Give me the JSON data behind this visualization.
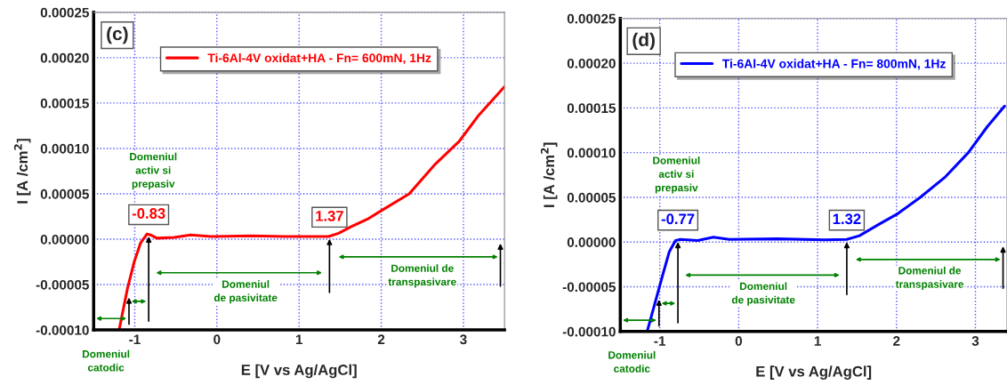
{
  "chart_data": [
    {
      "type": "line",
      "title": "(c)",
      "xlabel": "E [V vs Ag/AgCl]",
      "ylabel": "I [A /cm$^{2}$]",
      "series": [
        {
          "name": "Ti-6Al-4V oxidat+HA - Fn= 600mN, 1Hz",
          "color": "#ff0000",
          "x": [
            -1.19,
            -1.09,
            -1.01,
            -0.93,
            -0.85,
            -0.81,
            -0.73,
            -0.52,
            -0.32,
            -0.07,
            0.42,
            0.82,
            1.36,
            1.48,
            1.64,
            1.85,
            2.01,
            2.34,
            2.66,
            2.95,
            3.19,
            3.5
          ],
          "values": [
            -0.0001,
            -5.5e-05,
            -2.6e-05,
            -4.3e-06,
            5.8e-06,
            4.7e-06,
            1.1e-06,
            2e-06,
            4.7e-06,
            3e-06,
            3.6e-06,
            3e-06,
            3e-06,
            6.5e-06,
            1.4e-05,
            2.3e-05,
            3.2e-05,
            5e-05,
            8.3e-05,
            0.000108,
            0.000137,
            0.000168
          ]
        }
      ],
      "annotations": [
        {
          "text": "-0.83",
          "x": -0.83,
          "y": 5.8e-06
        },
        {
          "text": "1.37",
          "x": 1.37,
          "y": 3e-06
        },
        "Domeniul catodic",
        "Domeniul activ si prepasiv",
        "Domeniul de pasivitate",
        "Domeniul de transpasivare"
      ],
      "xlim": [
        -1.5,
        3.5
      ],
      "xticks": [
        -1,
        0,
        1,
        2,
        3
      ],
      "ylim": [
        -0.0001,
        0.00025
      ],
      "yticks": [
        {
          "value": -0.0001,
          "label": "-0.00010"
        },
        {
          "value": -5e-05,
          "label": "-0.00005"
        },
        {
          "value": 0,
          "label": "0.00000"
        },
        {
          "value": 5e-05,
          "label": "0.00005"
        },
        {
          "value": 0.0001,
          "label": "0.00010"
        },
        {
          "value": 0.00015,
          "label": "0.00015"
        },
        {
          "value": 0.0002,
          "label": "0.00020"
        },
        {
          "value": 0.00025,
          "label": "0.00025"
        }
      ],
      "grid": true,
      "legend": "top",
      "line_style": "solid",
      "marker": "none"
    },
    {
      "type": "line",
      "title": "(d)",
      "xlabel": "E [V vs Ag/AgCl]",
      "ylabel": "I [A /cm$^{2}$]",
      "series": [
        {
          "name": "Ti-6Al-4V oxidat+HA - Fn= 800mN, 1Hz",
          "color": "#0000ff",
          "x": [
            -1.16,
            -1.06,
            -0.96,
            -0.88,
            -0.8,
            -0.74,
            -0.52,
            -0.32,
            -0.12,
            0.49,
            1.09,
            1.37,
            1.53,
            1.78,
            2.02,
            2.3,
            2.62,
            2.91,
            3.15,
            3.37
          ],
          "values": [
            -0.0001,
            -6.8e-05,
            -3.6e-05,
            -1.1e-05,
            1.8e-06,
            2.9e-06,
            1.8e-06,
            5.4e-06,
            2.9e-06,
            3.6e-06,
            2.5e-06,
            2.9e-06,
            7.1e-06,
            2e-05,
            3.2e-05,
            5e-05,
            7.3e-05,
            0.0001,
            0.000129,
            0.000152
          ]
        }
      ],
      "annotations": [
        {
          "text": "-0.77",
          "x": -0.77,
          "y": 2.9e-06
        },
        {
          "text": "1.32",
          "x": 1.37,
          "y": 2.9e-06
        },
        "Domeniul catodic",
        "Domeniul activ si prepasiv",
        "Domeniul de pasivitate",
        "Domeniul de transpasivare"
      ],
      "xlim": [
        -1.5,
        3.4
      ],
      "xticks": [
        -1,
        0,
        1,
        2,
        3
      ],
      "ylim": [
        -0.0001,
        0.00025
      ],
      "yticks": [
        {
          "value": -0.0001,
          "label": "-0.00010"
        },
        {
          "value": -5e-05,
          "label": "-0.00005"
        },
        {
          "value": 0,
          "label": "0.00000"
        },
        {
          "value": 5e-05,
          "label": "0.00005"
        },
        {
          "value": 0.0001,
          "label": "0.00010"
        },
        {
          "value": 0.00015,
          "label": "0.00015"
        },
        {
          "value": 0.0002,
          "label": "0.00020"
        },
        {
          "value": 0.00025,
          "label": "0.00025"
        }
      ],
      "grid": true,
      "legend": "top",
      "line_style": "solid",
      "marker": "none"
    }
  ]
}
